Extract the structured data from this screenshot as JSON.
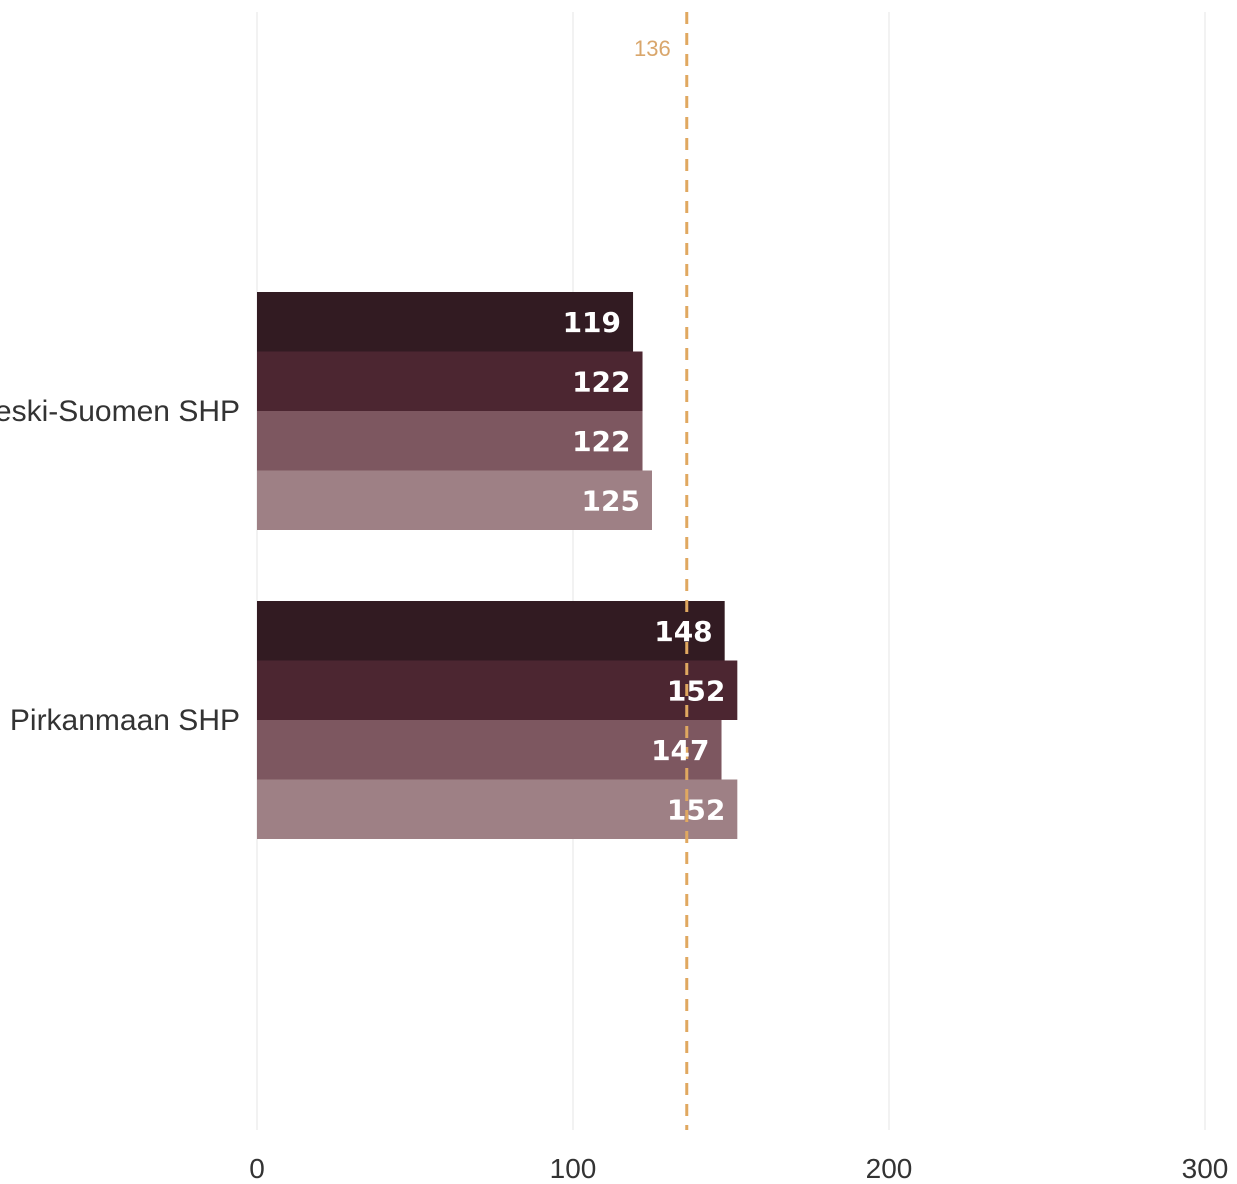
{
  "chart_data": {
    "type": "bar",
    "orientation": "horizontal",
    "categories": [
      "Keski-Suomen SHP",
      "Pirkanmaan SHP"
    ],
    "series": [
      {
        "values": [
          119,
          148
        ],
        "color": "#321b22"
      },
      {
        "values": [
          122,
          152
        ],
        "color": "#4c2631"
      },
      {
        "values": [
          122,
          147
        ],
        "color": "#7d5760"
      },
      {
        "values": [
          125,
          152
        ],
        "color": "#9e8085"
      }
    ],
    "xlim": [
      0,
      300
    ],
    "x_ticks": [
      0,
      100,
      200,
      300
    ],
    "x_tick_labels": [
      "0",
      "100",
      "200",
      "300"
    ],
    "reference_line": {
      "value": 136,
      "label": "136",
      "color": "#e0a860",
      "style": "dashed"
    },
    "grid": true,
    "gridline_color": "#eeeeee",
    "data_labels": true,
    "legend": "none",
    "title": "",
    "xlabel": "",
    "ylabel": ""
  }
}
